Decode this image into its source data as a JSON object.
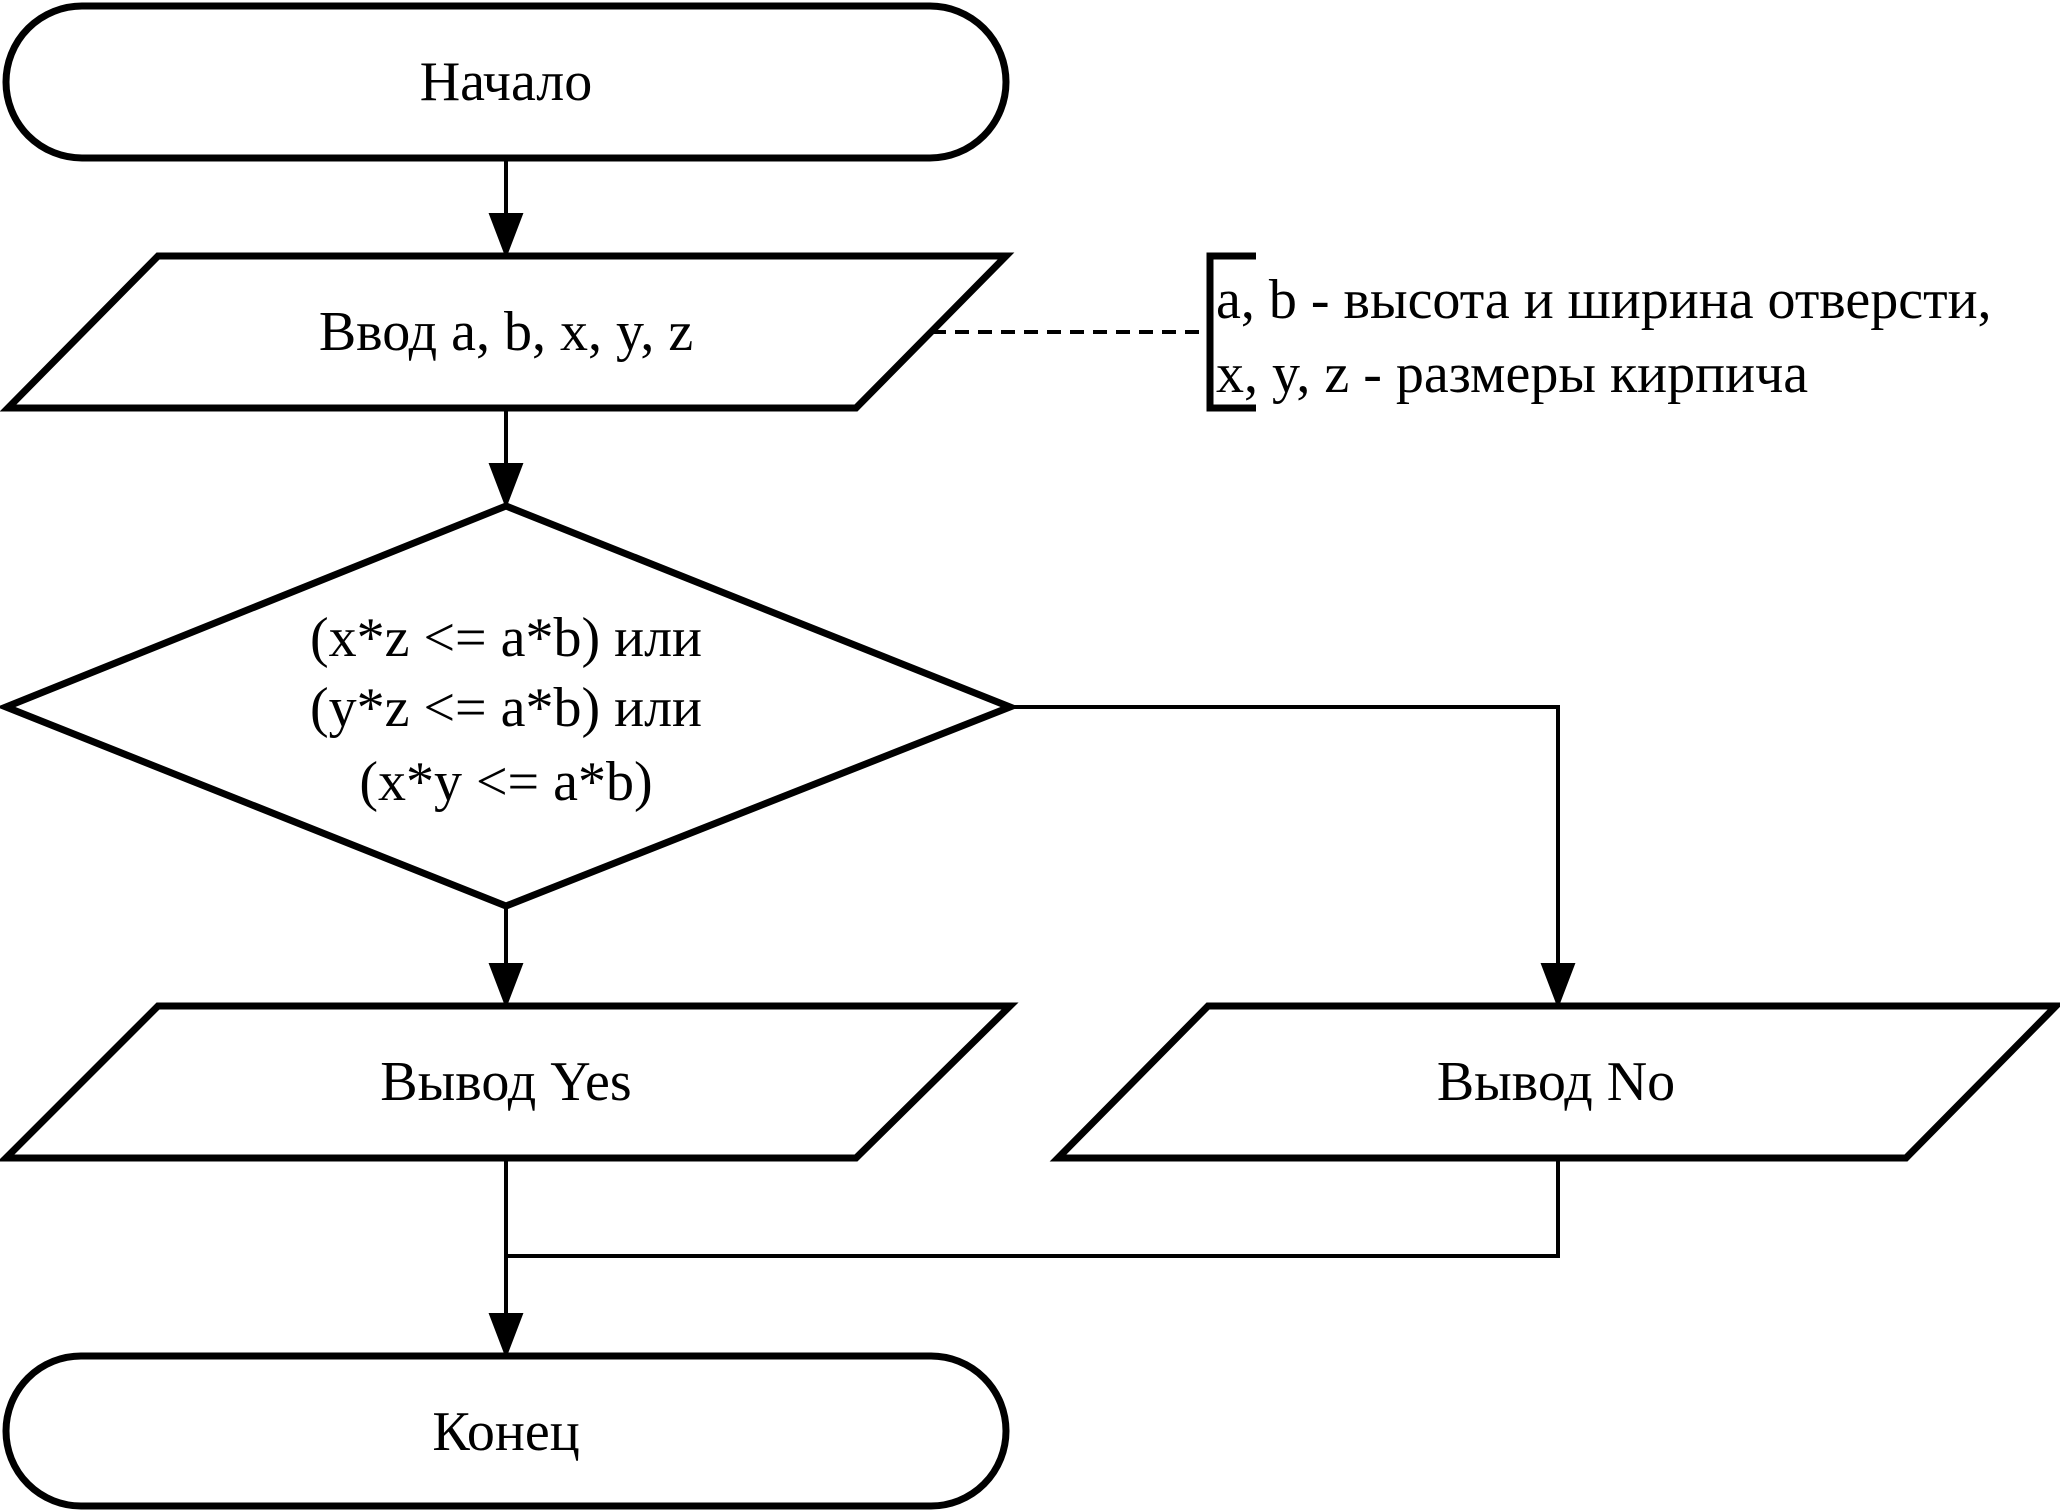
{
  "flowchart": {
    "start": {
      "label": "Начало"
    },
    "input": {
      "label": "Ввод a, b, x, y, z"
    },
    "comment": {
      "lines": [
        "a, b - высота и ширина отверсти,",
        "x, y, z - размеры кирпича"
      ]
    },
    "decision": {
      "lines": [
        "(x*z <= a*b) или",
        "(y*z <= a*b) или",
        "(x*y <= a*b)"
      ]
    },
    "output_yes": {
      "label": "Вывод Yes"
    },
    "output_no": {
      "label": "Вывод No"
    },
    "end": {
      "label": "Конец"
    }
  },
  "colors": {
    "stroke": "#000000",
    "background": "#ffffff"
  }
}
